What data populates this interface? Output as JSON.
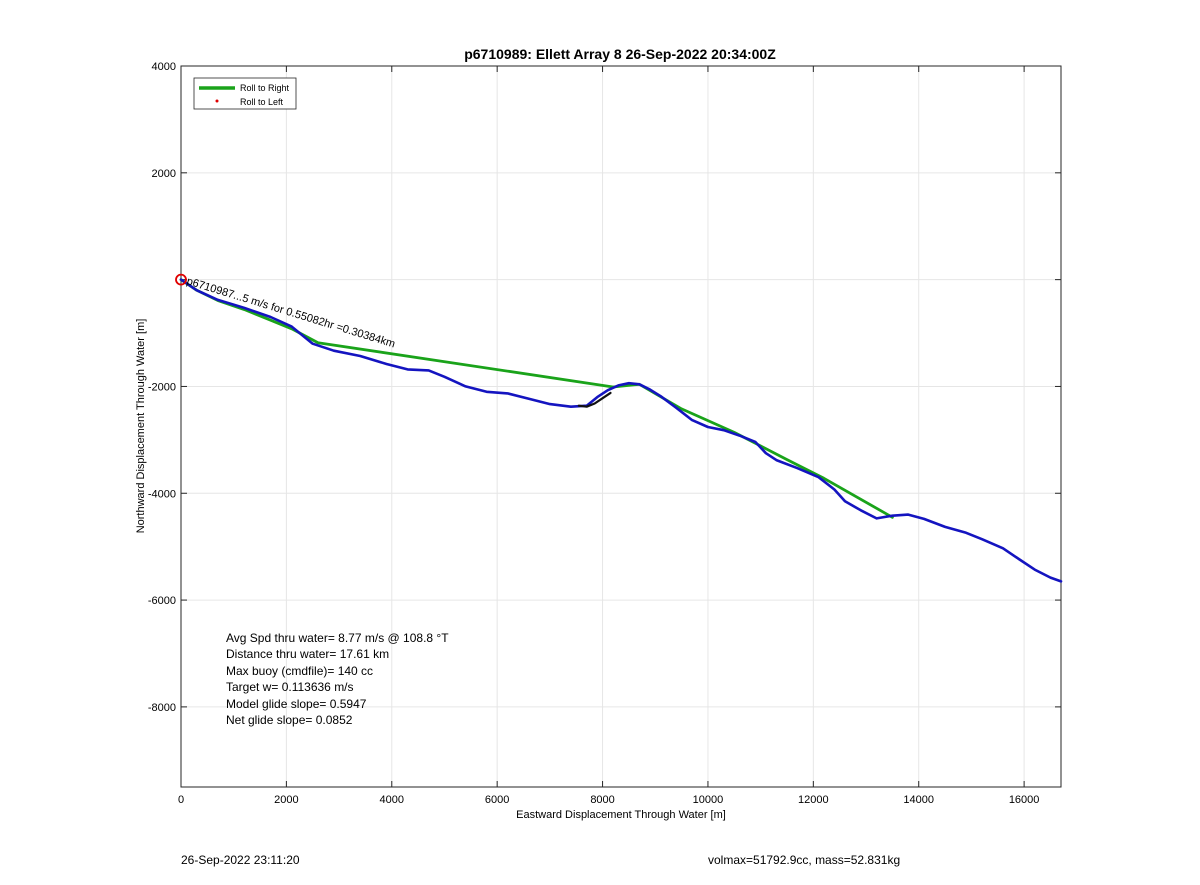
{
  "chart_data": {
    "type": "line",
    "title": "p6710989: Ellett Array 8 26-Sep-2022 20:34:00Z",
    "xlabel": "Eastward Displacement Through Water [m]",
    "ylabel": "Northward Displacement Through Water [m]",
    "xlim": [
      0,
      16700
    ],
    "ylim": [
      -9500,
      4000
    ],
    "xticks": [
      0,
      2000,
      4000,
      6000,
      8000,
      10000,
      12000,
      14000,
      16000
    ],
    "yticks": [
      4000,
      2000,
      -2000,
      -4000,
      -6000,
      -8000
    ],
    "grid": true,
    "legend_position": "top-left",
    "legend": [
      {
        "label": "Roll to Right",
        "color": "#1aa31a",
        "style": "line"
      },
      {
        "label": "Roll to Left",
        "color": "#e00000",
        "style": "dot"
      }
    ],
    "series": [
      {
        "color": "#1414c0",
        "x": [
          0,
          300,
          700,
          1200,
          1700,
          2100,
          2500,
          2900,
          3400,
          3900,
          4300,
          4700,
          5000,
          5400,
          5800,
          6200,
          6600,
          7000,
          7400,
          7700,
          7900,
          8100,
          8300,
          8500,
          8700,
          8900,
          9100,
          9400,
          9700,
          10000,
          10300,
          10600,
          10900,
          11100,
          11300,
          11700,
          12100,
          12400,
          12600,
          12900,
          13200,
          13500,
          13800,
          14100,
          14500,
          14900,
          15200,
          15600,
          15900,
          16200,
          16500,
          16700
        ],
        "y": [
          0,
          -200,
          -380,
          -530,
          -700,
          -880,
          -1200,
          -1330,
          -1430,
          -1580,
          -1680,
          -1700,
          -1820,
          -2000,
          -2100,
          -2130,
          -2230,
          -2330,
          -2380,
          -2360,
          -2200,
          -2070,
          -1980,
          -1940,
          -1960,
          -2060,
          -2180,
          -2400,
          -2630,
          -2760,
          -2820,
          -2920,
          -3040,
          -3250,
          -3380,
          -3530,
          -3700,
          -3930,
          -4150,
          -4320,
          -4470,
          -4420,
          -4400,
          -4480,
          -4630,
          -4740,
          -4860,
          -5030,
          -5230,
          -5430,
          -5580,
          -5650
        ]
      },
      {
        "name": "Roll to Right",
        "color": "#1aa31a",
        "x": [
          0,
          300,
          700,
          1200,
          1700,
          2100,
          2600,
          8200,
          8700,
          9500,
          10500,
          11500,
          12200,
          13500
        ],
        "y": [
          0,
          -200,
          -390,
          -560,
          -760,
          -920,
          -1180,
          -2010,
          -1960,
          -2420,
          -2860,
          -3370,
          -3720,
          -4450
        ]
      },
      {
        "color": "#111111",
        "x": [
          7550,
          7700,
          7850,
          8000,
          8150
        ],
        "y": [
          -2360,
          -2380,
          -2320,
          -2220,
          -2120
        ]
      }
    ],
    "start_marker": {
      "x": 0,
      "y": 0,
      "color": "#e00000"
    },
    "track_label": "p6710987...5 m/s for 0.55082hr =0.30384km",
    "annotations": [
      "Avg Spd thru water=  8.77 m/s @ 108.8 °T",
      "Distance thru water= 17.61 km",
      "Max buoy (cmdfile)= 140 cc",
      "Target w= 0.113636 m/s",
      "Model glide slope= 0.5947",
      "Net glide slope= 0.0852"
    ]
  },
  "footer": {
    "timestamp": "26-Sep-2022 23:11:20",
    "summary": "volmax=51792.9cc, mass=52.831kg"
  }
}
